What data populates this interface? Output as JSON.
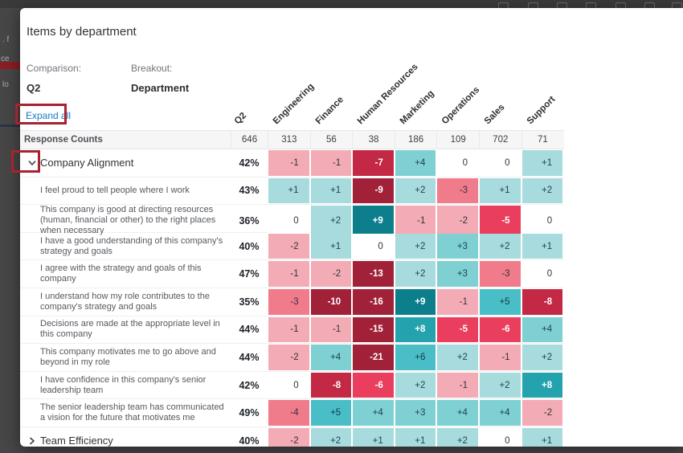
{
  "background": {
    "topbar_icon_count": 7,
    "fragments": [
      ". f",
      "ce",
      "lo"
    ]
  },
  "modal": {
    "title": "Items by department",
    "comparison_label": "Comparison:",
    "comparison_value": "Q2",
    "breakout_label": "Breakout:",
    "breakout_value": "Department",
    "expand_all_label": "Expand all"
  },
  "table": {
    "columns": [
      "Q2",
      "Engineering",
      "Finance",
      "Human Resources",
      "Marketing",
      "Operations",
      "Sales",
      "Support"
    ],
    "response_counts_label": "Response Counts",
    "response_counts": [
      646,
      313,
      56,
      38,
      186,
      109,
      702,
      71
    ],
    "rows": [
      {
        "type": "group",
        "expanded": true,
        "label": "Company Alignment",
        "pct": "42%",
        "values": [
          -1,
          -1,
          -7,
          4,
          0,
          0,
          1
        ]
      },
      {
        "type": "item",
        "label": "I feel proud to tell people where I work",
        "pct": "43%",
        "values": [
          1,
          1,
          -9,
          2,
          -3,
          1,
          2
        ]
      },
      {
        "type": "item",
        "label": "This company is good at directing resources (human, financial or other) to the right places when necessary",
        "pct": "36%",
        "values": [
          0,
          2,
          9,
          -1,
          -2,
          -5,
          0
        ]
      },
      {
        "type": "item",
        "label": "I have a good understanding of this company's strategy and goals",
        "pct": "40%",
        "values": [
          -2,
          1,
          0,
          2,
          3,
          2,
          1
        ]
      },
      {
        "type": "item",
        "label": "I agree with the strategy and goals of this company",
        "pct": "47%",
        "values": [
          -1,
          -2,
          -13,
          2,
          3,
          -3,
          0
        ]
      },
      {
        "type": "item",
        "label": "I understand how my role contributes to the company's strategy and goals",
        "pct": "35%",
        "values": [
          -3,
          -10,
          -16,
          9,
          -1,
          5,
          -8
        ]
      },
      {
        "type": "item",
        "label": "Decisions are made at the appropriate level in this company",
        "pct": "44%",
        "values": [
          -1,
          -1,
          -15,
          8,
          -5,
          -6,
          4
        ]
      },
      {
        "type": "item",
        "label": "This company motivates me to go above and beyond in my role",
        "pct": "44%",
        "values": [
          -2,
          4,
          -21,
          6,
          2,
          -1,
          2
        ]
      },
      {
        "type": "item",
        "label": "I have confidence in this company's senior leadership team",
        "pct": "42%",
        "values": [
          0,
          -8,
          -6,
          2,
          -1,
          2,
          8
        ]
      },
      {
        "type": "item",
        "label": "The senior leadership team has communicated a vision for the future that motivates me",
        "pct": "49%",
        "values": [
          -4,
          5,
          4,
          3,
          4,
          4,
          -2
        ]
      },
      {
        "type": "group",
        "expanded": false,
        "label": "Team Efficiency",
        "pct": "40%",
        "values": [
          -2,
          2,
          1,
          1,
          2,
          0,
          1
        ]
      }
    ]
  },
  "palette": {
    "neg_extreme": "#a02138",
    "neg_strong": "#c32944",
    "neg_med": "#ea3e5e",
    "neg_soft": "#f07b8b",
    "neg_light": "#f3abb5",
    "zero": "#ffffff",
    "pos_light": "#a7dbde",
    "pos_soft": "#7ed0d3",
    "pos_med": "#49bec7",
    "pos_strong": "#24a3af",
    "pos_extreme": "#0d7f8c",
    "annotation": "#a8222f",
    "link": "#1779c8"
  }
}
